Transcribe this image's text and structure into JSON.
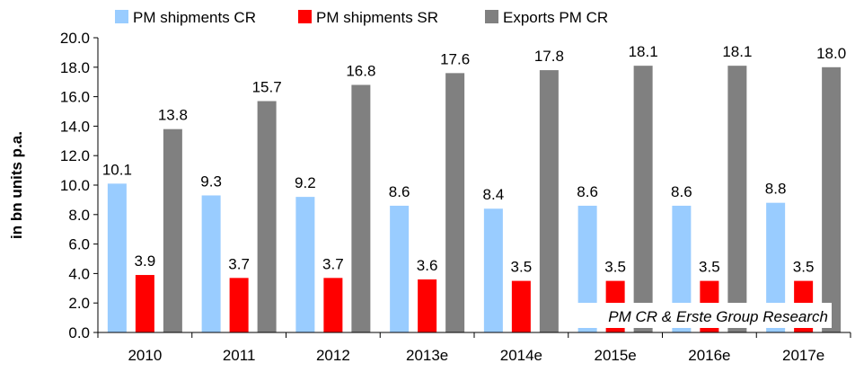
{
  "chart_data": {
    "type": "bar",
    "title": "",
    "xlabel": "",
    "ylabel": "in bn units p.a.",
    "ylim": [
      0,
      20
    ],
    "yticks": [
      "0.0",
      "2.0",
      "4.0",
      "6.0",
      "8.0",
      "10.0",
      "12.0",
      "14.0",
      "16.0",
      "18.0",
      "20.0"
    ],
    "grid": false,
    "legend_position": "top",
    "categories": [
      "2010",
      "2011",
      "2012",
      "2013e",
      "2014e",
      "2015e",
      "2016e",
      "2017e"
    ],
    "series": [
      {
        "name": "PM shipments CR",
        "color": "#99ccff",
        "values": [
          10.1,
          9.3,
          9.2,
          8.6,
          8.4,
          8.6,
          8.6,
          8.8
        ],
        "labels": [
          "10.1",
          "9.3",
          "9.2",
          "8.6",
          "8.4",
          "8.6",
          "8.6",
          "8.8"
        ]
      },
      {
        "name": "PM shipments SR",
        "color": "#ff0000",
        "values": [
          3.9,
          3.7,
          3.7,
          3.6,
          3.5,
          3.5,
          3.5,
          3.5
        ],
        "labels": [
          "3.9",
          "3.7",
          "3.7",
          "3.6",
          "3.5",
          "3.5",
          "3.5",
          "3.5"
        ]
      },
      {
        "name": "Exports PM CR",
        "color": "#808080",
        "values": [
          13.8,
          15.7,
          16.8,
          17.6,
          17.8,
          18.1,
          18.1,
          18.0
        ],
        "labels": [
          "13.8",
          "15.7",
          "16.8",
          "17.6",
          "17.8",
          "18.1",
          "18.1",
          "18.0"
        ]
      }
    ],
    "annotation": "PM CR & Erste Group Research"
  }
}
